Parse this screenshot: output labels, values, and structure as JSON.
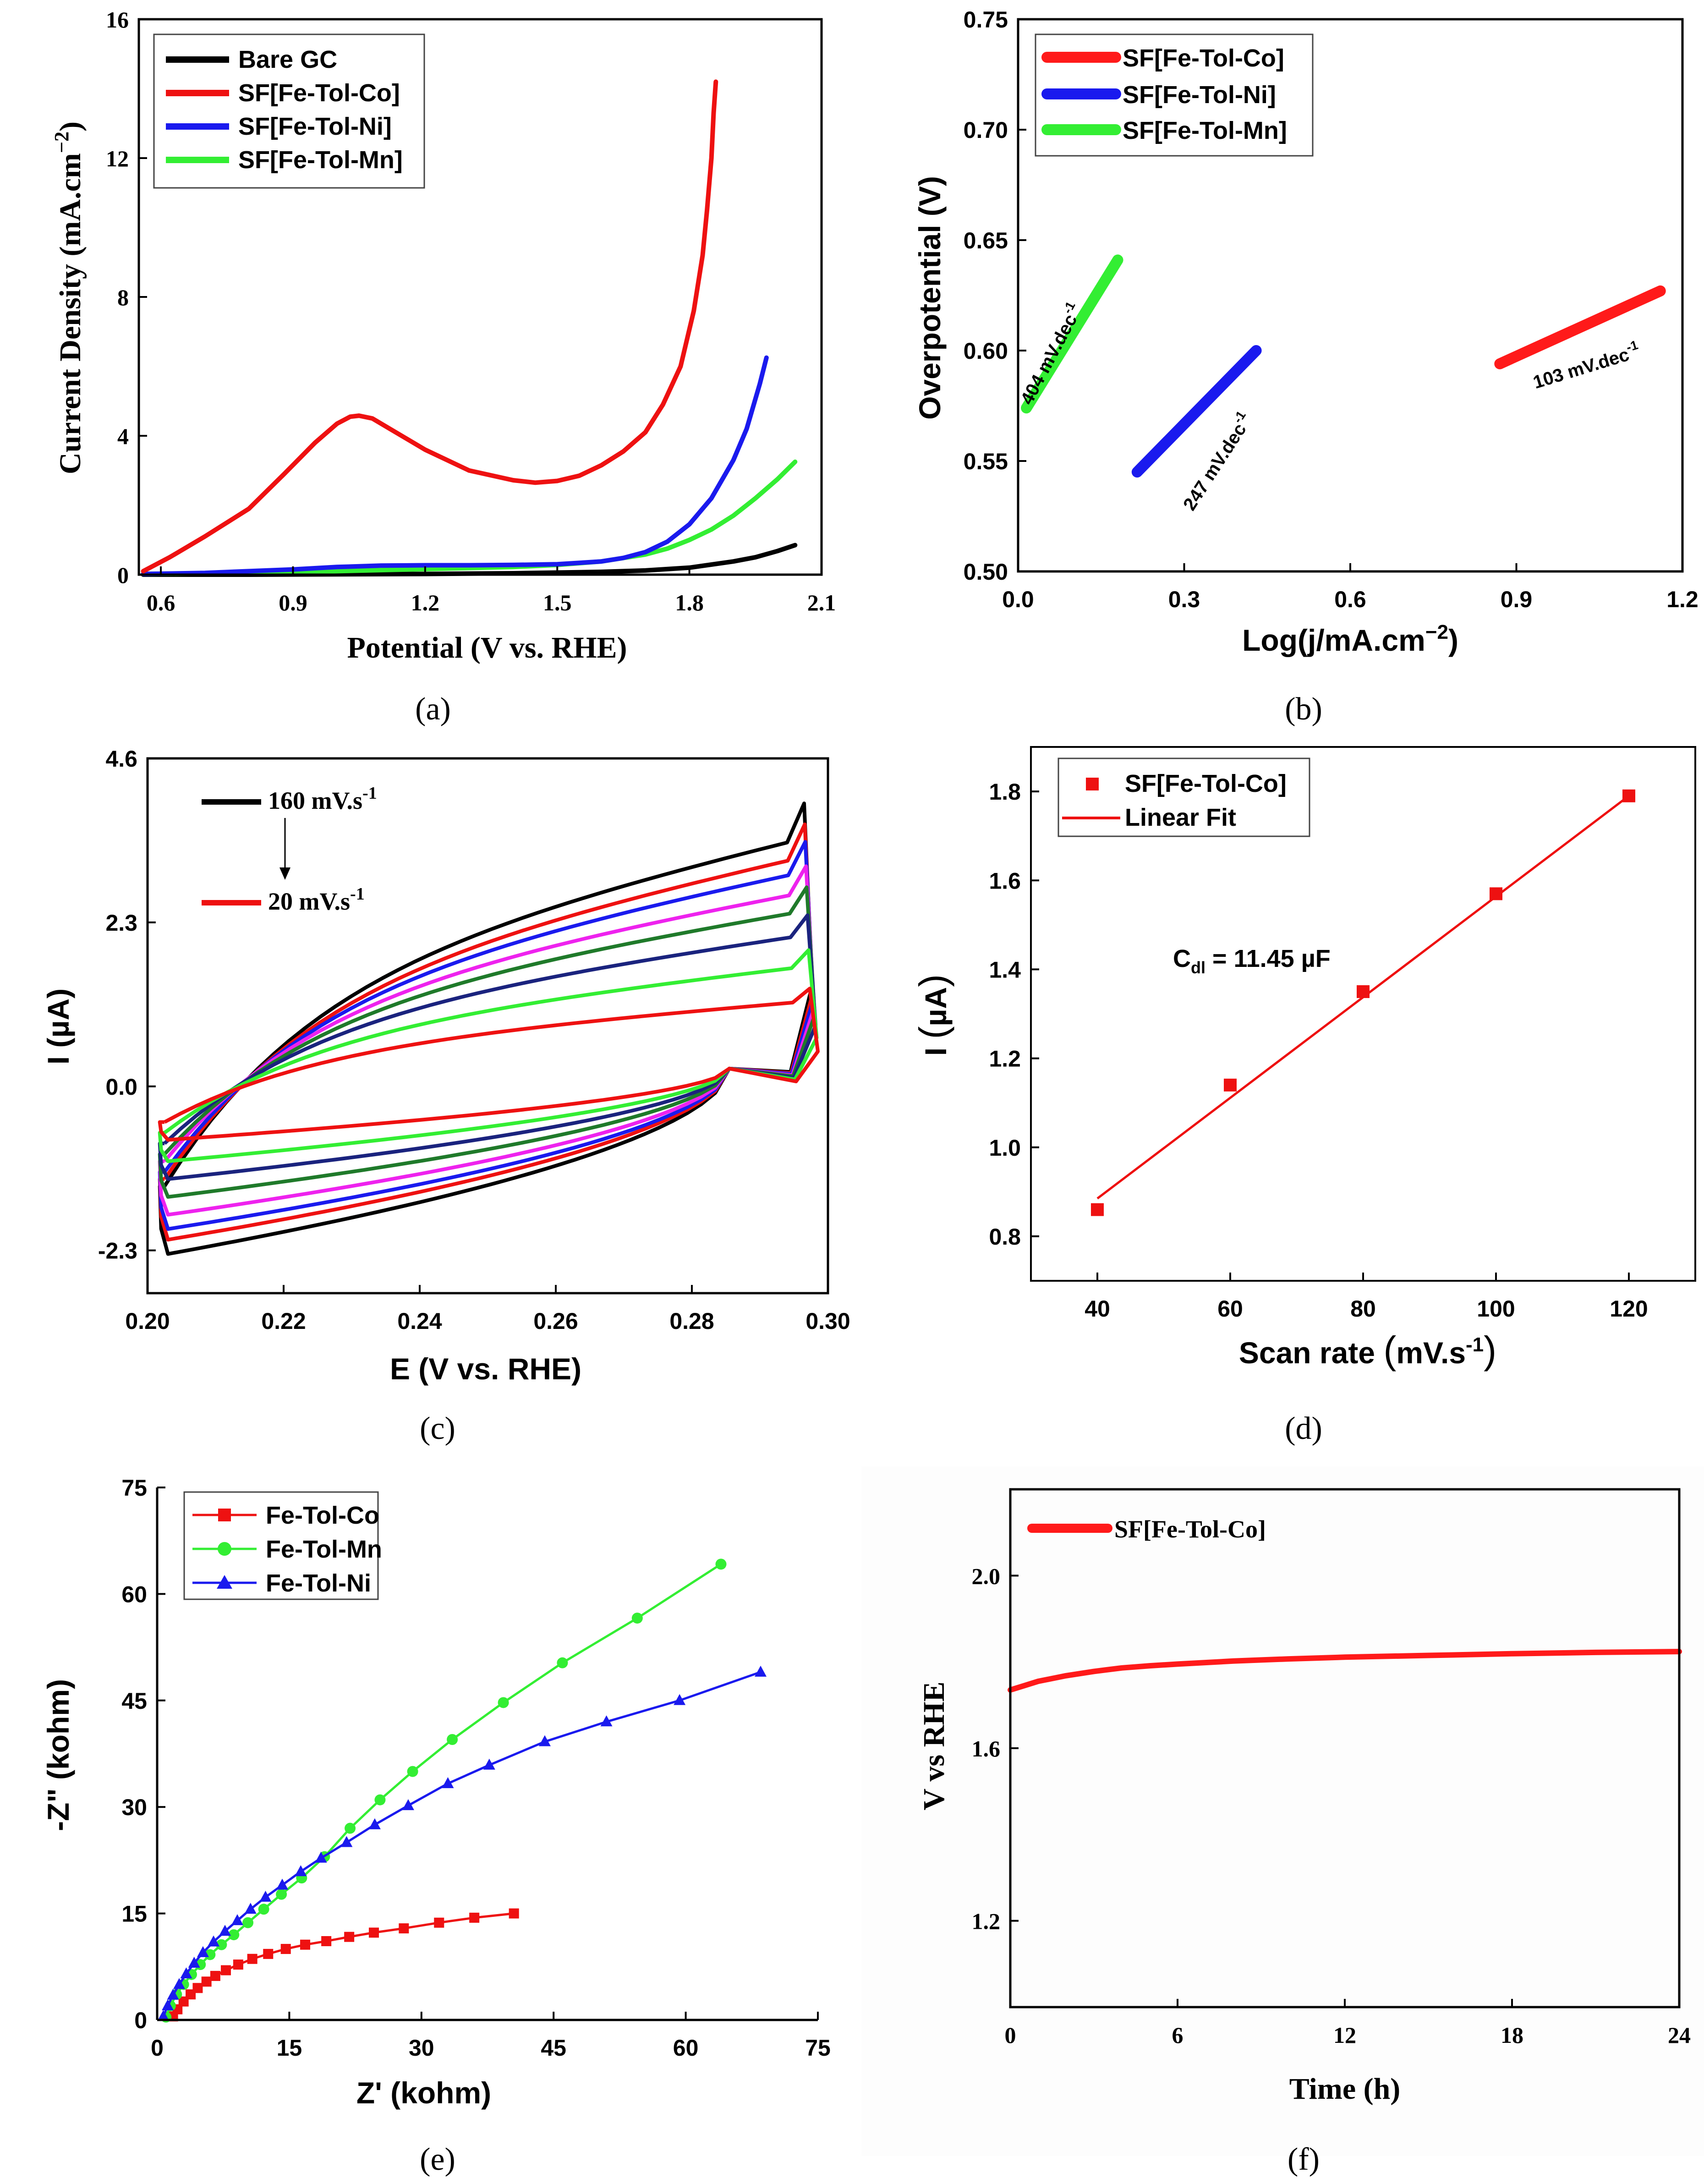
{
  "figure": {
    "colors": {
      "black": "#000000",
      "red": "#ee1111",
      "blue": "#1a1aee",
      "green": "#33ee33",
      "magenta": "#ee22ee",
      "darkgreen": "#1f7a2a",
      "navy": "#1a237e",
      "brightred": "#ff1a1a"
    }
  },
  "chart_data": [
    {
      "id": "a",
      "type": "line",
      "caption": "(a)",
      "xlabel": "Potential (V vs. RHE)",
      "ylabel": "Current Density (mA.cm",
      "ylabel_sup": "−2",
      "ylabel_close": ")",
      "xlim": [
        0.55,
        2.1
      ],
      "ylim": [
        0,
        16
      ],
      "xticks": [
        "0.6",
        "0.9",
        "1.2",
        "1.5",
        "1.8",
        "2.1"
      ],
      "yticks": [
        "0",
        "4",
        "8",
        "12",
        "16"
      ],
      "legend": [
        "Bare GC",
        "SF[Fe-Tol-Co]",
        "SF[Fe-Tol-Ni]",
        "SF[Fe-Tol-Mn]"
      ],
      "series": [
        {
          "name": "Bare GC",
          "color": "#000000",
          "x": [
            0.56,
            0.8,
            1.0,
            1.2,
            1.4,
            1.6,
            1.7,
            1.8,
            1.9,
            1.95,
            2.0,
            2.04
          ],
          "y": [
            0,
            0,
            0.01,
            0.02,
            0.04,
            0.08,
            0.12,
            0.2,
            0.38,
            0.5,
            0.68,
            0.85
          ]
        },
        {
          "name": "SF[Fe-Tol-Co]",
          "color": "#ee1111",
          "x": [
            0.56,
            0.62,
            0.7,
            0.8,
            0.88,
            0.95,
            1.0,
            1.03,
            1.05,
            1.08,
            1.12,
            1.2,
            1.3,
            1.4,
            1.45,
            1.5,
            1.55,
            1.6,
            1.65,
            1.7,
            1.74,
            1.78,
            1.81,
            1.83,
            1.84,
            1.85,
            1.855,
            1.86
          ],
          "y": [
            0.1,
            0.5,
            1.1,
            1.9,
            2.9,
            3.8,
            4.35,
            4.55,
            4.58,
            4.5,
            4.2,
            3.6,
            3.0,
            2.72,
            2.65,
            2.7,
            2.85,
            3.15,
            3.55,
            4.1,
            4.9,
            6.0,
            7.6,
            9.2,
            10.5,
            12.0,
            13.3,
            14.2
          ]
        },
        {
          "name": "SF[Fe-Tol-Ni]",
          "color": "#1a1aee",
          "x": [
            0.56,
            0.7,
            0.9,
            1.0,
            1.1,
            1.2,
            1.3,
            1.4,
            1.5,
            1.6,
            1.65,
            1.7,
            1.75,
            1.8,
            1.85,
            1.9,
            1.93,
            1.96,
            1.975
          ],
          "y": [
            0.02,
            0.05,
            0.15,
            0.22,
            0.26,
            0.27,
            0.27,
            0.28,
            0.3,
            0.38,
            0.48,
            0.65,
            0.95,
            1.45,
            2.2,
            3.3,
            4.2,
            5.5,
            6.25
          ]
        },
        {
          "name": "SF[Fe-Tol-Mn]",
          "color": "#33ee33",
          "x": [
            0.56,
            0.8,
            1.0,
            1.2,
            1.4,
            1.5,
            1.6,
            1.7,
            1.75,
            1.8,
            1.85,
            1.9,
            1.95,
            2.0,
            2.04
          ],
          "y": [
            0.02,
            0.05,
            0.1,
            0.16,
            0.22,
            0.28,
            0.38,
            0.58,
            0.75,
            1.0,
            1.3,
            1.7,
            2.2,
            2.75,
            3.25
          ]
        }
      ]
    },
    {
      "id": "b",
      "type": "line",
      "caption": "(b)",
      "xlabel": "Log(j/mA.cm",
      "xlabel_sup": "−2",
      "xlabel_close": ")",
      "ylabel": "Overpotential (V)",
      "xlim": [
        0.0,
        1.2
      ],
      "ylim": [
        0.5,
        0.75
      ],
      "xticks": [
        "0.0",
        "0.3",
        "0.6",
        "0.9",
        "1.2"
      ],
      "yticks": [
        "0.50",
        "0.55",
        "0.60",
        "0.65",
        "0.70",
        "0.75"
      ],
      "legend": [
        "SF[Fe-Tol-Co]",
        "SF[Fe-Tol-Ni]",
        "SF[Fe-Tol-Mn]"
      ],
      "series": [
        {
          "name": "SF[Fe-Tol-Co]",
          "color": "#ff1a1a",
          "x": [
            0.87,
            1.16
          ],
          "y": [
            0.594,
            0.627
          ]
        },
        {
          "name": "SF[Fe-Tol-Ni]",
          "color": "#1a1aee",
          "x": [
            0.215,
            0.43
          ],
          "y": [
            0.545,
            0.6
          ]
        },
        {
          "name": "SF[Fe-Tol-Mn]",
          "color": "#33ee33",
          "x": [
            0.015,
            0.18
          ],
          "y": [
            0.574,
            0.641
          ]
        }
      ],
      "annotations": [
        {
          "text": "404 mV.dec",
          "sup": "-1",
          "at": [
            0.07,
            0.597
          ],
          "angle": -62
        },
        {
          "text": "247 mV.dec",
          "sup": "-1",
          "at": [
            0.37,
            0.548
          ],
          "angle": -57
        },
        {
          "text": "103 mV.dec",
          "sup": "-1",
          "at": [
            1.03,
            0.59
          ],
          "angle": -17
        }
      ]
    },
    {
      "id": "c",
      "type": "line",
      "caption": "(c)",
      "xlabel": "E (V vs. RHE)",
      "ylabel": "I (",
      "ylabel_mu": "µA",
      "ylabel_close": ")",
      "xlim": [
        0.2,
        0.3
      ],
      "ylim": [
        -2.9,
        4.6
      ],
      "xticks": [
        "0.20",
        "0.22",
        "0.24",
        "0.26",
        "0.28",
        "0.30"
      ],
      "yticks": [
        "-2.3",
        "0.0",
        "2.3",
        "4.6"
      ],
      "annotations": [
        "160 mV.s",
        "20 mV.s"
      ],
      "annotation_sup": "-1",
      "cycles": [
        {
          "rate": 160,
          "color": "#000000",
          "top": 4.05,
          "bot": -2.35,
          "upstart": -1.4,
          "lowend": -1.4
        },
        {
          "rate": 140,
          "color": "#ee1111",
          "top": 3.75,
          "bot": -2.15,
          "upstart": -1.3,
          "lowend": -1.3
        },
        {
          "rate": 120,
          "color": "#1a1aee",
          "top": 3.5,
          "bot": -2.0,
          "upstart": -1.2,
          "lowend": -1.2
        },
        {
          "rate": 100,
          "color": "#ee22ee",
          "top": 3.15,
          "bot": -1.8,
          "upstart": -1.05,
          "lowend": -1.05
        },
        {
          "rate": 80,
          "color": "#1f7a2a",
          "top": 2.85,
          "bot": -1.55,
          "upstart": -0.95,
          "lowend": -0.95
        },
        {
          "rate": 60,
          "color": "#1a237e",
          "top": 2.45,
          "bot": -1.3,
          "upstart": -0.8,
          "lowend": -0.8
        },
        {
          "rate": 40,
          "color": "#33ee33",
          "top": 1.95,
          "bot": -1.05,
          "upstart": -0.65,
          "lowend": -0.65
        },
        {
          "rate": 20,
          "color": "#ee1111",
          "top": 1.4,
          "bot": -0.75,
          "upstart": -0.5,
          "lowend": -0.5
        }
      ]
    },
    {
      "id": "d",
      "type": "scatter",
      "caption": "(d)",
      "xlabel": "Scan rate ",
      "xlabel_paren_text": "mV.s",
      "xlabel_sup": "-1",
      "ylabel": "I ",
      "ylabel_mu": "µA",
      "xlim": [
        30,
        130
      ],
      "ylim": [
        0.7,
        1.9
      ],
      "xticks": [
        "40",
        "60",
        "80",
        "100",
        "120"
      ],
      "yticks": [
        "0.8",
        "1.0",
        "1.2",
        "1.4",
        "1.6",
        "1.8"
      ],
      "legend": [
        "SF[Fe-Tol-Co]",
        "Linear Fit"
      ],
      "points": {
        "x": [
          40,
          60,
          80,
          100,
          120
        ],
        "y": [
          0.86,
          1.14,
          1.35,
          1.57,
          1.79
        ]
      },
      "fit": {
        "x": [
          40,
          120
        ],
        "y": [
          0.885,
          1.79
        ]
      },
      "annotation": "C",
      "annotation_sub": "dl",
      "annotation_rest": " = 11.45 µF"
    },
    {
      "id": "e",
      "type": "line",
      "caption": "(e)",
      "xlabel": "Z' (kohm)",
      "ylabel": "-Z\" (kohm)",
      "xlim": [
        0,
        75
      ],
      "ylim": [
        0,
        75
      ],
      "xticks": [
        "0",
        "15",
        "30",
        "45",
        "60",
        "75"
      ],
      "yticks": [
        "0",
        "15",
        "30",
        "45",
        "60",
        "75"
      ],
      "legend": [
        "Fe-Tol-Co",
        "Fe-Tol-Mn",
        "Fe-Tol-Ni"
      ],
      "series": [
        {
          "name": "Fe-Tol-Co",
          "color": "#ee1111",
          "marker": "square",
          "x": [
            1.8,
            2.3,
            3.0,
            3.8,
            4.6,
            5.6,
            6.6,
            7.8,
            9.2,
            10.8,
            12.6,
            14.6,
            16.8,
            19.2,
            21.8,
            24.6,
            28.0,
            32.0,
            36.0,
            40.5
          ],
          "y": [
            0.5,
            1.5,
            2.6,
            3.6,
            4.5,
            5.4,
            6.2,
            7.0,
            7.8,
            8.6,
            9.3,
            10.0,
            10.6,
            11.1,
            11.7,
            12.3,
            12.9,
            13.7,
            14.4,
            15.0
          ]
        },
        {
          "name": "Fe-Tol-Mn",
          "color": "#33ee33",
          "marker": "circle",
          "x": [
            1.0,
            1.5,
            2.2,
            3.0,
            3.9,
            4.9,
            6.0,
            7.3,
            8.7,
            10.3,
            12.1,
            14.1,
            16.4,
            19.0,
            21.9,
            25.3,
            29.0,
            33.5,
            39.3,
            46.0,
            54.5,
            64.0
          ],
          "y": [
            0.4,
            2.0,
            3.6,
            5.0,
            6.4,
            7.8,
            9.2,
            10.6,
            12.0,
            13.7,
            15.6,
            17.7,
            20.0,
            23.0,
            27.0,
            31.0,
            35.0,
            39.5,
            44.7,
            50.3,
            56.6,
            64.2
          ]
        },
        {
          "name": "Fe-Tol-Ni",
          "color": "#1a1aee",
          "marker": "triangle",
          "x": [
            0.7,
            1.2,
            1.8,
            2.5,
            3.3,
            4.2,
            5.2,
            6.4,
            7.7,
            9.1,
            10.6,
            12.3,
            14.2,
            16.3,
            18.6,
            21.5,
            24.7,
            28.5,
            33.0,
            37.7,
            44.0,
            51.0,
            59.3,
            68.5
          ],
          "y": [
            0.5,
            2.0,
            3.5,
            5.0,
            6.5,
            8.0,
            9.5,
            11.0,
            12.5,
            14.0,
            15.6,
            17.3,
            19.0,
            20.9,
            22.8,
            25.0,
            27.5,
            30.2,
            33.3,
            35.9,
            39.2,
            42.0,
            45.0,
            49.0
          ]
        }
      ]
    },
    {
      "id": "f",
      "type": "line",
      "caption": "(f)",
      "xlabel": "Time (h)",
      "ylabel": "V vs RHE",
      "xlim": [
        0,
        24
      ],
      "ylim": [
        1.0,
        2.2
      ],
      "xticks": [
        "0",
        "6",
        "12",
        "18",
        "24"
      ],
      "yticks": [
        "1.2",
        "1.6",
        "2.0"
      ],
      "legend": [
        "SF[Fe-Tol-Co]"
      ],
      "series": [
        {
          "name": "SF[Fe-Tol-Co]",
          "color": "#ff1a1a",
          "x": [
            0,
            0.5,
            1,
            2,
            3,
            4,
            5,
            6,
            8,
            10,
            12,
            15,
            18,
            21,
            24
          ],
          "y": [
            1.735,
            1.745,
            1.755,
            1.768,
            1.778,
            1.786,
            1.791,
            1.795,
            1.802,
            1.807,
            1.811,
            1.815,
            1.819,
            1.822,
            1.824
          ]
        }
      ]
    }
  ]
}
